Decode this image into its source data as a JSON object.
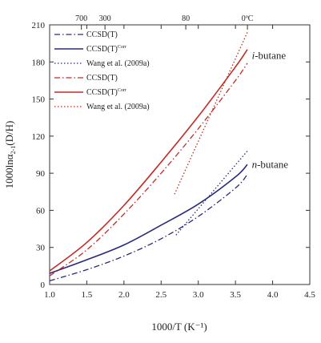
{
  "chart_data": {
    "type": "line",
    "xlabel": "1000/T (K⁻¹)",
    "ylabel": "1000lnα",
    "ylabel_sub": "2-1",
    "ylabel_tail": "(D/H)",
    "xlim": [
      1.0,
      4.5
    ],
    "ylim": [
      0,
      210
    ],
    "x_ticks": [
      1.0,
      1.5,
      2.0,
      2.5,
      3.0,
      3.5,
      4.0,
      4.5
    ],
    "x_tick_labels": [
      "1.0",
      "1.5",
      "2.0",
      "2.5",
      "3.0",
      "3.5",
      "4.0",
      "4.5"
    ],
    "y_ticks": [
      0,
      30,
      60,
      90,
      120,
      150,
      180,
      210
    ],
    "y_tick_labels": [
      "0",
      "30",
      "60",
      "90",
      "120",
      "150",
      "180",
      "210"
    ],
    "top_axis": {
      "ticks": [
        1.4271,
        1.7446,
        2.8317,
        3.661
      ],
      "tick_labels": [
        "700",
        "300",
        "80",
        "0ºC"
      ]
    },
    "legend_position": "top-left",
    "annotations": [
      {
        "text": "i-butane",
        "italic": "i",
        "rest": "-butane",
        "x": 3.72,
        "y": 185
      },
      {
        "text": "n-butane",
        "italic": "n",
        "rest": "-butane",
        "x": 3.72,
        "y": 97
      }
    ],
    "series": [
      {
        "name": "CCSD(T)",
        "color": "#2a2a7c",
        "style": "dashdot",
        "width": 1.3,
        "x": [
          1.0,
          1.5,
          2.0,
          2.5,
          3.0,
          3.5,
          3.66
        ],
        "y": [
          3,
          12,
          23,
          37,
          55,
          78,
          89
        ]
      },
      {
        "name": "CCSD(T)",
        "sup": "Corr",
        "color": "#2a2a7c",
        "style": "solid",
        "width": 1.6,
        "x": [
          1.0,
          1.5,
          2.0,
          2.5,
          3.0,
          3.5,
          3.66
        ],
        "y": [
          9,
          20,
          32,
          48,
          65,
          87,
          97
        ]
      },
      {
        "name": "Wang et al. (2009a)",
        "color": "#2a2a7c",
        "style": "dot",
        "width": 1.3,
        "x": [
          2.7,
          3.66
        ],
        "y": [
          40,
          108
        ]
      },
      {
        "name": "CCSD(T)",
        "color": "#c42a22",
        "style": "dashdot",
        "width": 1.3,
        "x": [
          1.0,
          1.5,
          2.0,
          2.5,
          3.0,
          3.5,
          3.66
        ],
        "y": [
          7,
          28,
          57,
          90,
          126,
          165,
          179
        ]
      },
      {
        "name": "CCSD(T)",
        "sup": "Corr",
        "color": "#c42a22",
        "style": "solid",
        "width": 1.6,
        "x": [
          1.0,
          1.5,
          2.0,
          2.5,
          3.0,
          3.5,
          3.66
        ],
        "y": [
          11,
          34,
          64,
          99,
          136,
          176,
          190
        ]
      },
      {
        "name": "Wang et al. (2009a)",
        "color": "#c42a22",
        "style": "dot",
        "width": 1.3,
        "x": [
          2.68,
          3.66
        ],
        "y": [
          73,
          204
        ]
      }
    ]
  }
}
